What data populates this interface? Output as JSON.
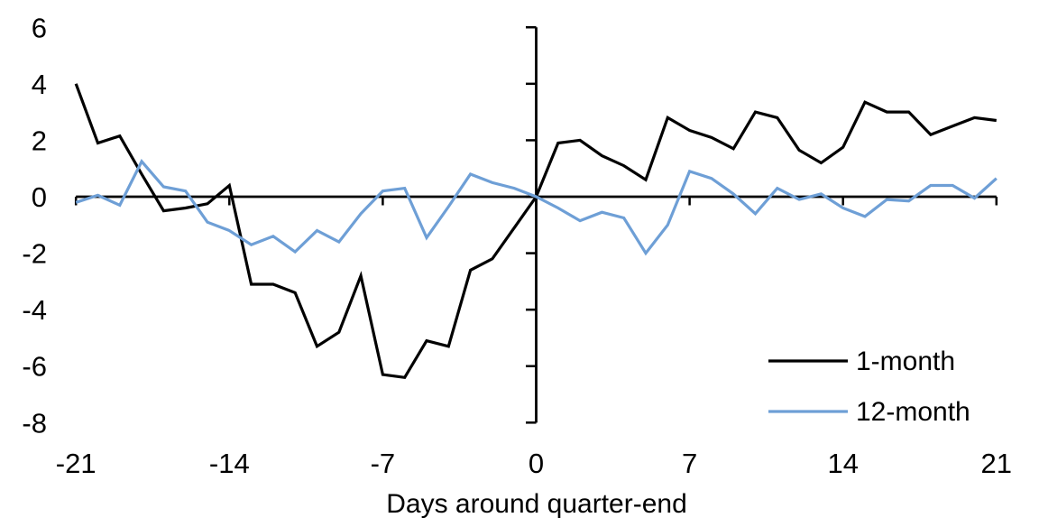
{
  "figure": {
    "xlabel": "Days around quarter-end",
    "background": "#ffffff",
    "axis_color": "#000000"
  },
  "chart_data": {
    "type": "line",
    "title": "",
    "xlabel": "Days around quarter-end",
    "ylabel": "",
    "xlim": [
      -21,
      21
    ],
    "ylim": [
      -8,
      6
    ],
    "x_ticks": [
      -21,
      -14,
      -7,
      0,
      7,
      14,
      21
    ],
    "y_ticks": [
      6,
      4,
      2,
      0,
      -2,
      -4,
      -6,
      -8
    ],
    "grid": false,
    "legend_position": "inside-bottom-right",
    "x": [
      -21,
      -20,
      -19,
      -18,
      -17,
      -16,
      -15,
      -14,
      -13,
      -12,
      -11,
      -10,
      -9,
      -8,
      -7,
      -6,
      -5,
      -4,
      -3,
      -2,
      -1,
      0,
      1,
      2,
      3,
      4,
      5,
      6,
      7,
      8,
      9,
      10,
      11,
      12,
      13,
      14,
      15,
      16,
      17,
      18,
      19,
      20,
      21
    ],
    "series": [
      {
        "name": "1-month",
        "color": "#000000",
        "values": [
          4.0,
          1.9,
          2.15,
          0.8,
          -0.5,
          -0.4,
          -0.25,
          0.4,
          -3.1,
          -3.1,
          -3.4,
          -5.3,
          -4.8,
          -2.8,
          -6.3,
          -6.4,
          -5.1,
          -5.3,
          -2.6,
          -2.2,
          -1.1,
          0.0,
          1.9,
          2.0,
          1.45,
          1.1,
          0.6,
          2.8,
          2.35,
          2.1,
          1.7,
          3.0,
          2.8,
          1.65,
          1.2,
          1.75,
          3.35,
          3.0,
          3.0,
          2.2,
          2.5,
          2.8,
          2.7
        ]
      },
      {
        "name": "12-month",
        "color": "#6E9FD6",
        "values": [
          -0.2,
          0.05,
          -0.3,
          1.25,
          0.35,
          0.2,
          -0.9,
          -1.2,
          -1.7,
          -1.4,
          -1.95,
          -1.2,
          -1.6,
          -0.6,
          0.2,
          0.3,
          -1.45,
          -0.35,
          0.8,
          0.5,
          0.3,
          0.0,
          -0.4,
          -0.85,
          -0.55,
          -0.75,
          -2.0,
          -1.0,
          0.9,
          0.65,
          0.1,
          -0.6,
          0.3,
          -0.1,
          0.1,
          -0.4,
          -0.7,
          -0.1,
          -0.15,
          0.4,
          0.4,
          -0.05,
          0.65
        ]
      }
    ]
  }
}
